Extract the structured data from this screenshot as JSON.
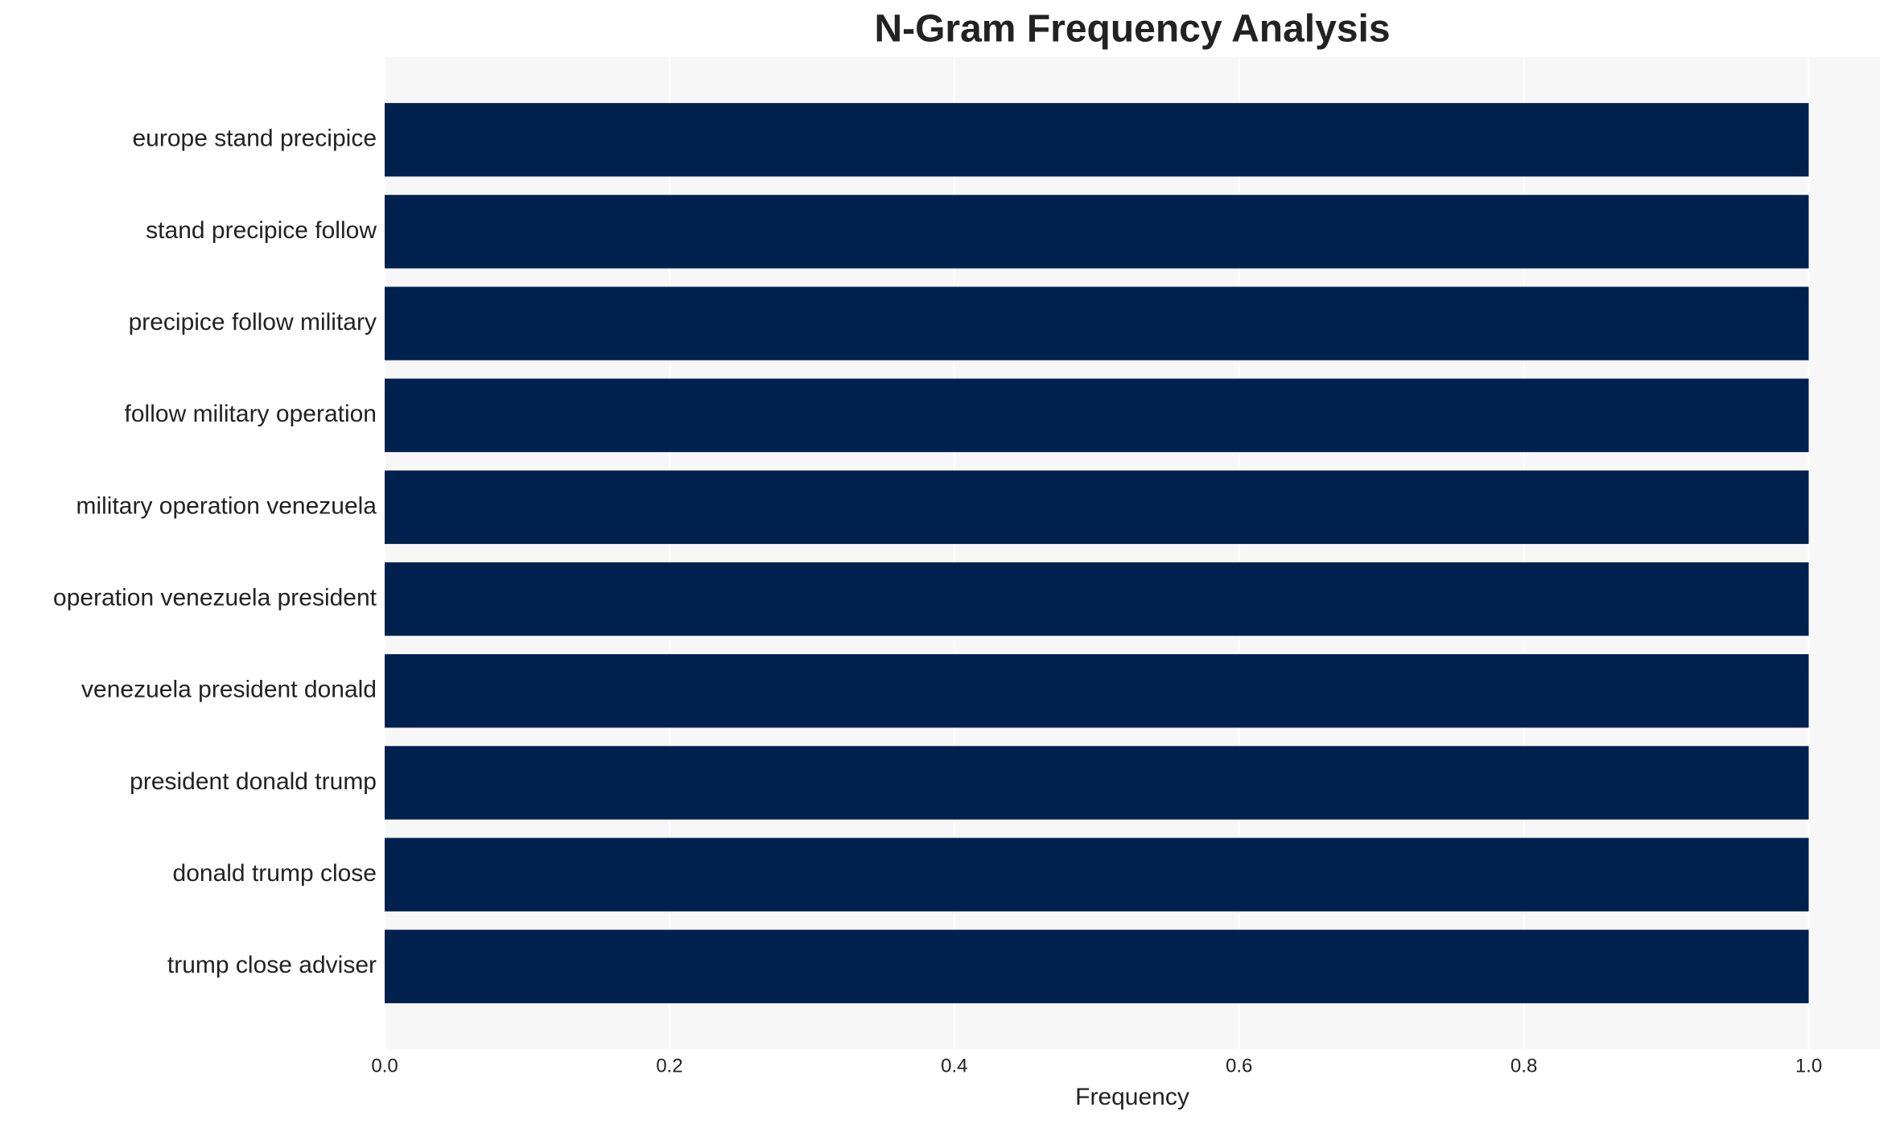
{
  "chart_data": {
    "type": "bar",
    "orientation": "horizontal",
    "title": "N-Gram Frequency Analysis",
    "xlabel": "Frequency",
    "categories": [
      "europe stand precipice",
      "stand precipice follow",
      "precipice follow military",
      "follow military operation",
      "military operation venezuela",
      "operation venezuela president",
      "venezuela president donald",
      "president donald trump",
      "donald trump close",
      "trump close adviser"
    ],
    "values": [
      1,
      1,
      1,
      1,
      1,
      1,
      1,
      1,
      1,
      1
    ],
    "color": "#00214e",
    "xlim": [
      0,
      1.05
    ],
    "xticks": [
      {
        "value": 0,
        "label": "0.0"
      },
      {
        "value": 0.2,
        "label": "0.2"
      },
      {
        "value": 0.4,
        "label": "0.4"
      },
      {
        "value": 0.6,
        "label": "0.6"
      },
      {
        "value": 0.8,
        "label": "0.8"
      },
      {
        "value": 1,
        "label": "1.0"
      }
    ],
    "grid": true
  }
}
